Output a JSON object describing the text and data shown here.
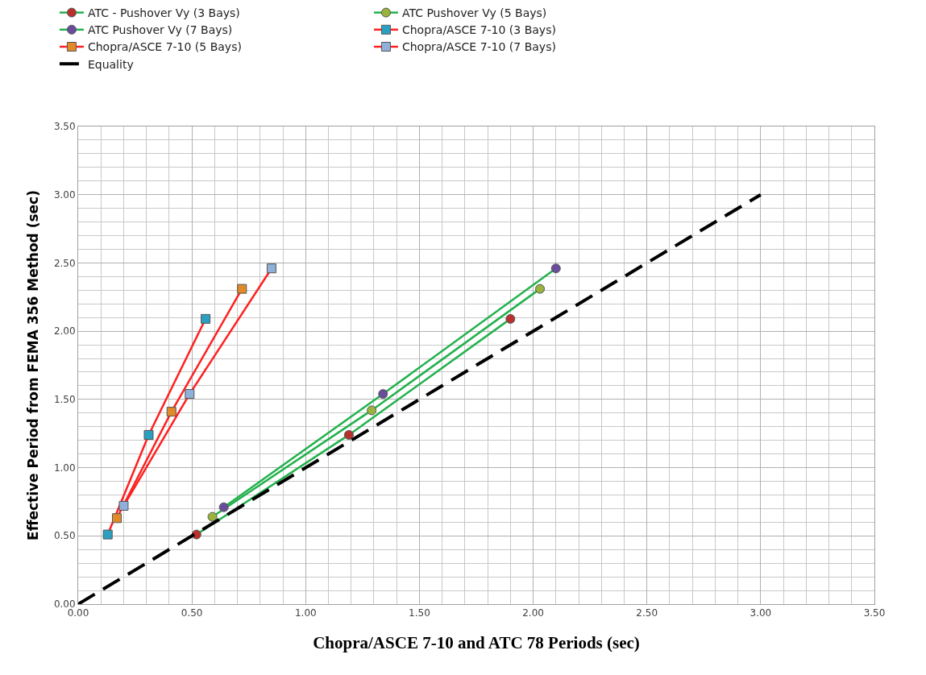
{
  "chart_data": {
    "type": "line",
    "xlabel": "Chopra/ASCE 7-10 and ATC 78 Periods (sec)",
    "ylabel": "Effective Period from FEMA 356 Method (sec)",
    "xlim": [
      0,
      3.5
    ],
    "ylim": [
      0,
      3.5
    ],
    "xticks": [
      {
        "value": 0,
        "label": "0.00"
      },
      {
        "value": 0.5,
        "label": "0.50"
      },
      {
        "value": 1,
        "label": "1.00"
      },
      {
        "value": 1.5,
        "label": "1.50"
      },
      {
        "value": 2,
        "label": "2.00"
      },
      {
        "value": 2.5,
        "label": "2.50"
      },
      {
        "value": 3,
        "label": "3.00"
      },
      {
        "value": 3.5,
        "label": "3.50"
      }
    ],
    "yticks": [
      {
        "value": 0,
        "label": "0.00"
      },
      {
        "value": 0.5,
        "label": "0.50"
      },
      {
        "value": 1,
        "label": "1.00"
      },
      {
        "value": 1.5,
        "label": "1.50"
      },
      {
        "value": 2,
        "label": "2.00"
      },
      {
        "value": 2.5,
        "label": "2.50"
      },
      {
        "value": 3,
        "label": "3.00"
      },
      {
        "value": 3.5,
        "label": "3.50"
      }
    ],
    "grid": true,
    "legend": "top",
    "line_style": "solid",
    "series": [
      {
        "name": "ATC - Pushover Vy (3 Bays)",
        "color": "#22b14c",
        "colors": [
          "#b8312f",
          "#b8312f",
          "#b8312f"
        ],
        "marker": "circle",
        "x": [
          0.52,
          1.19,
          1.9
        ],
        "values": [
          0.51,
          1.24,
          2.09
        ]
      },
      {
        "name": "ATC Pushover Vy (5 Bays)",
        "color": "#22b14c",
        "colors": [
          "#9ab33c",
          "#9ab33c",
          "#9ab33c"
        ],
        "marker": "circle",
        "x": [
          0.59,
          1.29,
          2.03
        ],
        "values": [
          0.64,
          1.42,
          2.31
        ]
      },
      {
        "name": "ATC Pushover Vy (7 Bays)",
        "color": "#22b14c",
        "colors": [
          "#6a4c9c",
          "#6a4c9c",
          "#6a4c9c"
        ],
        "marker": "circle",
        "x": [
          0.64,
          1.34,
          2.1
        ],
        "values": [
          0.71,
          1.54,
          2.46
        ]
      },
      {
        "name": "Chopra/ASCE 7-10 (3 Bays)",
        "color": "#ff2020",
        "colors": [
          "#2aa0c0",
          "#2aa0c0",
          "#2aa0c0"
        ],
        "marker": "square",
        "x": [
          0.13,
          0.31,
          0.56
        ],
        "values": [
          0.51,
          1.24,
          2.09
        ]
      },
      {
        "name": "Chopra/ASCE 7-10 (5 Bays)",
        "color": "#ff2020",
        "colors": [
          "#e08a2a",
          "#e08a2a",
          "#e08a2a"
        ],
        "marker": "square",
        "x": [
          0.17,
          0.41,
          0.72
        ],
        "values": [
          0.63,
          1.41,
          2.31
        ]
      },
      {
        "name": "Chopra/ASCE 7-10 (7 Bays)",
        "color": "#ff2020",
        "colors": [
          "#8fb0d8",
          "#8fb0d8",
          "#8fb0d8"
        ],
        "marker": "square",
        "x": [
          0.2,
          0.49,
          0.85
        ],
        "values": [
          0.72,
          1.54,
          2.46
        ]
      },
      {
        "name": "Equality",
        "color": "#000000",
        "marker": "none",
        "line_style": "dashed",
        "x": [
          0,
          3
        ],
        "values": [
          0,
          3
        ]
      }
    ]
  }
}
